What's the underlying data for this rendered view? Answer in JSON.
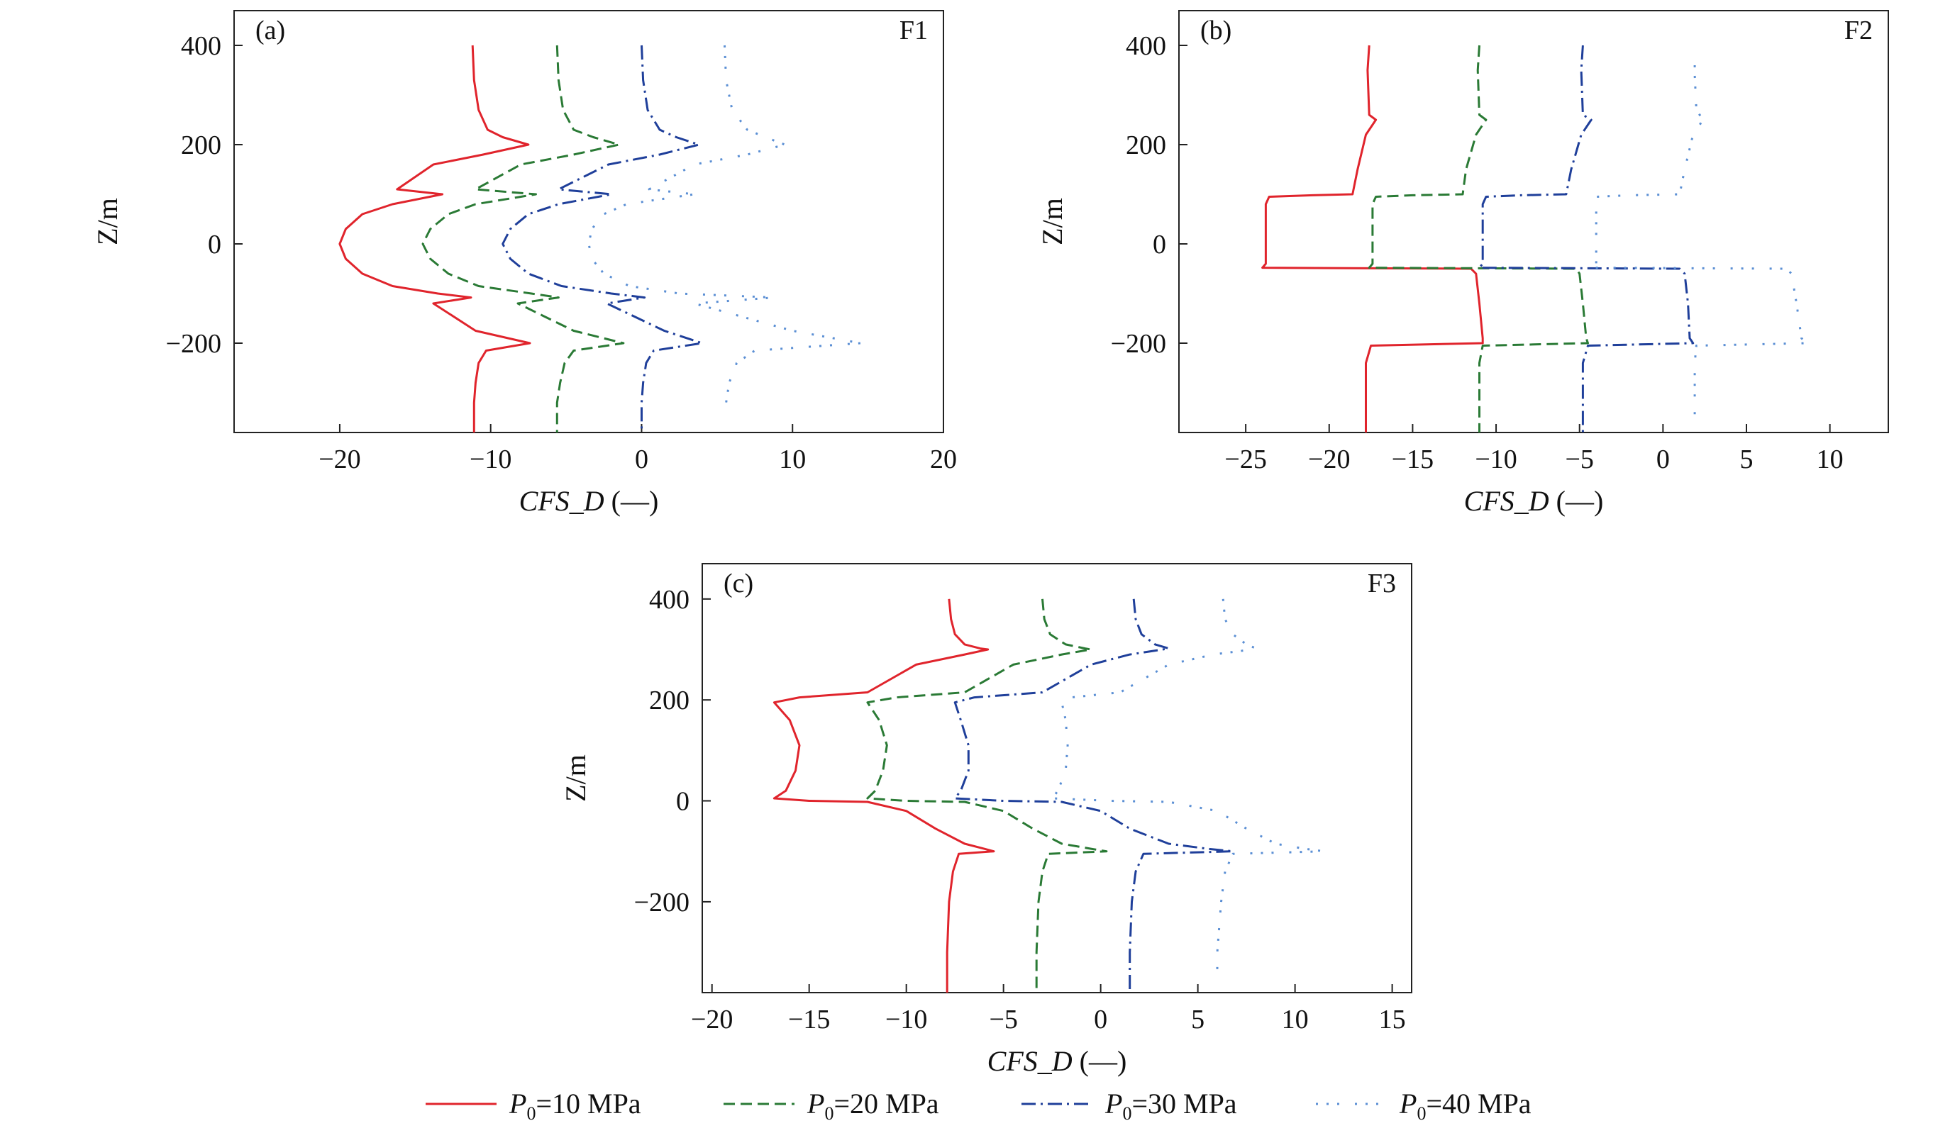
{
  "legend": [
    {
      "symbol": "P",
      "sub": "0",
      "label": "=10 MPa",
      "color": "#e0242c",
      "dash": "solid"
    },
    {
      "symbol": "P",
      "sub": "0",
      "label": "=20 MPa",
      "color": "#2a7a35",
      "dash": "dashed"
    },
    {
      "symbol": "P",
      "sub": "0",
      "label": "=30 MPa",
      "color": "#1f3f9a",
      "dash": "dashdot"
    },
    {
      "symbol": "P",
      "sub": "0",
      "label": "=40 MPa",
      "color": "#5b8fd4",
      "dash": "dashdotdot"
    }
  ],
  "chart_data": [
    {
      "type": "line",
      "panel": "(a)",
      "fault": "F1",
      "xlabel": "CFS_D",
      "xunit": "(—)",
      "ylabel": "Z/m",
      "xlim": [
        -27,
        20
      ],
      "ylim": [
        -380,
        470
      ],
      "xticks": [
        -20,
        -10,
        0,
        10,
        20
      ],
      "xtick_labels": [
        "−20",
        "−10",
        "0",
        "10",
        "20"
      ],
      "yticks": [
        400,
        200,
        0,
        -200
      ],
      "ytick_labels": [
        "400",
        "200",
        "0",
        "−200"
      ],
      "series": [
        {
          "name": "P0=10 MPa",
          "x": [
            -11.2,
            -11.1,
            -10.8,
            -10.2,
            -9.2,
            -7.5,
            -10.5,
            -13.8,
            -16.2,
            -13.2,
            -16.5,
            -18.5,
            -19.6,
            -20.0,
            -19.6,
            -18.5,
            -16.5,
            -13.5,
            -11.3,
            -13.8,
            -11.0,
            -7.4,
            -10.3,
            -10.8,
            -11.0,
            -11.1,
            -11.1,
            -11.1
          ],
          "y": [
            400,
            330,
            270,
            230,
            215,
            200,
            180,
            160,
            110,
            100,
            80,
            60,
            30,
            0,
            -30,
            -60,
            -85,
            -100,
            -108,
            -120,
            -175,
            -200,
            -215,
            -240,
            -280,
            -320,
            -360,
            -380
          ]
        },
        {
          "name": "P0=20 MPa",
          "x": [
            -5.6,
            -5.5,
            -5.2,
            -4.5,
            -3.2,
            -1.5,
            -4.5,
            -8.0,
            -11.0,
            -7.0,
            -11.0,
            -12.8,
            -14.0,
            -14.5,
            -14.0,
            -12.8,
            -10.8,
            -7.3,
            -5.5,
            -8.2,
            -4.5,
            -1.2,
            -4.5,
            -5.1,
            -5.4,
            -5.6,
            -5.6,
            -5.6
          ],
          "y": [
            400,
            330,
            270,
            230,
            215,
            200,
            180,
            160,
            110,
            100,
            80,
            60,
            30,
            0,
            -30,
            -60,
            -85,
            -100,
            -108,
            -120,
            -175,
            -200,
            -215,
            -240,
            -280,
            -320,
            -360,
            -380
          ]
        },
        {
          "name": "P0=30 MPa",
          "x": [
            0,
            0.1,
            0.4,
            1.2,
            2.3,
            3.8,
            1.2,
            -2.2,
            -5.5,
            -2.0,
            -5.5,
            -7.5,
            -8.7,
            -9.2,
            -8.7,
            -7.5,
            -5.3,
            -2.0,
            0.2,
            -2.3,
            1.5,
            4.0,
            0.8,
            0.3,
            0.1,
            0,
            0,
            0
          ],
          "y": [
            400,
            330,
            270,
            230,
            215,
            200,
            180,
            160,
            110,
            100,
            80,
            60,
            30,
            0,
            -30,
            -60,
            -85,
            -100,
            -108,
            -120,
            -175,
            -200,
            -215,
            -240,
            -280,
            -320,
            -360,
            -380
          ]
        },
        {
          "name": "P0=40 MPa",
          "x": [
            5.5,
            5.6,
            6.0,
            7.0,
            8.2,
            9.5,
            7.0,
            3.5,
            0.5,
            3.5,
            -1.0,
            -2.5,
            -3.3,
            -3.5,
            -3.3,
            -2.5,
            -0.8,
            2.5,
            8.8,
            3.5,
            10.0,
            14.5,
            7.5,
            6.3,
            5.8,
            5.6,
            5.5,
            5.5
          ],
          "y": [
            400,
            330,
            270,
            230,
            215,
            200,
            180,
            160,
            110,
            100,
            80,
            60,
            30,
            0,
            -30,
            -60,
            -85,
            -100,
            -108,
            -120,
            -175,
            -200,
            -215,
            -240,
            -280,
            -320,
            -350,
            -350
          ]
        }
      ]
    },
    {
      "type": "line",
      "panel": "(b)",
      "fault": "F2",
      "xlabel": "CFS_D",
      "xunit": "(—)",
      "ylabel": "Z/m",
      "xlim": [
        -29,
        13.5
      ],
      "ylim": [
        -380,
        470
      ],
      "xticks": [
        -25,
        -20,
        -15,
        -10,
        -5,
        0,
        5,
        10
      ],
      "xtick_labels": [
        "−25",
        "−20",
        "−15",
        "−10",
        "−5",
        "0",
        "5",
        "10"
      ],
      "yticks": [
        400,
        200,
        0,
        -200
      ],
      "ytick_labels": [
        "400",
        "200",
        "0",
        "−200"
      ],
      "series": [
        {
          "name": "P0=10 MPa",
          "x": [
            -17.6,
            -17.7,
            -17.6,
            -17.2,
            -17.4,
            -17.8,
            -18.3,
            -18.6,
            -21.0,
            -23.6,
            -23.8,
            -23.8,
            -23.8,
            -24.0,
            -11.5,
            -11.2,
            -11.0,
            -10.8,
            -10.8,
            -17.5,
            -17.8,
            -17.8,
            -17.8
          ],
          "y": [
            400,
            350,
            260,
            250,
            240,
            220,
            150,
            100,
            98,
            95,
            80,
            0,
            -40,
            -48,
            -50,
            -60,
            -120,
            -190,
            -200,
            -205,
            -240,
            -300,
            -380
          ]
        },
        {
          "name": "P0=20 MPa",
          "x": [
            -11.0,
            -11.1,
            -11.0,
            -10.6,
            -10.8,
            -11.2,
            -11.8,
            -12.0,
            -15.0,
            -17.2,
            -17.4,
            -17.4,
            -17.4,
            -17.6,
            -5.2,
            -5.0,
            -4.8,
            -4.6,
            -4.5,
            -10.8,
            -11.0,
            -11.0,
            -11.0
          ],
          "y": [
            400,
            350,
            260,
            250,
            240,
            220,
            150,
            100,
            98,
            95,
            80,
            0,
            -40,
            -48,
            -50,
            -60,
            -120,
            -190,
            -200,
            -205,
            -240,
            -300,
            -380
          ]
        },
        {
          "name": "P0=30 MPa",
          "x": [
            -4.8,
            -4.9,
            -4.8,
            -4.3,
            -4.5,
            -4.9,
            -5.5,
            -5.8,
            -8.5,
            -10.6,
            -10.8,
            -10.8,
            -10.8,
            -11.0,
            1.0,
            1.3,
            1.5,
            1.6,
            1.8,
            -4.5,
            -4.8,
            -4.8,
            -4.8
          ],
          "y": [
            400,
            350,
            260,
            250,
            240,
            220,
            150,
            100,
            98,
            95,
            80,
            0,
            -40,
            -48,
            -50,
            -60,
            -120,
            -190,
            -200,
            -205,
            -240,
            -300,
            -380
          ]
        },
        {
          "name": "P0=40 MPa",
          "x": [
            1.9,
            1.9,
            2.0,
            2.4,
            2.2,
            1.8,
            1.3,
            1.0,
            -2.0,
            -4.0,
            -4.0,
            -4.0,
            -4.0,
            -4.2,
            7.4,
            7.7,
            8.0,
            8.3,
            8.6,
            2.0,
            1.9,
            1.9,
            1.9
          ],
          "y": [
            360,
            340,
            270,
            250,
            240,
            220,
            150,
            100,
            98,
            95,
            80,
            0,
            -40,
            -48,
            -50,
            -60,
            -120,
            -190,
            -200,
            -205,
            -240,
            -300,
            -350
          ]
        }
      ]
    },
    {
      "type": "line",
      "panel": "(c)",
      "fault": "F3",
      "xlabel": "CFS_D",
      "xunit": "(—)",
      "ylabel": "Z/m",
      "xlim": [
        -20.5,
        16
      ],
      "ylim": [
        -380,
        470
      ],
      "xticks": [
        -20,
        -15,
        -10,
        -5,
        0,
        5,
        10,
        15
      ],
      "xtick_labels": [
        "−20",
        "−15",
        "−10",
        "−5",
        "0",
        "5",
        "10",
        "15"
      ],
      "yticks": [
        400,
        200,
        0,
        -200
      ],
      "ytick_labels": [
        "400",
        "200",
        "0",
        "−200"
      ],
      "series": [
        {
          "name": "P0=10 MPa",
          "x": [
            -7.8,
            -7.7,
            -7.5,
            -7.0,
            -6.2,
            -5.8,
            -7.0,
            -9.5,
            -12.0,
            -15.5,
            -16.8,
            -16.0,
            -15.5,
            -15.7,
            -16.2,
            -16.8,
            -15.0,
            -12.0,
            -10.0,
            -8.5,
            -7.0,
            -6.0,
            -5.5,
            -7.3,
            -7.6,
            -7.8,
            -7.9,
            -7.9
          ],
          "y": [
            400,
            360,
            330,
            310,
            302,
            300,
            290,
            270,
            215,
            205,
            195,
            160,
            110,
            60,
            20,
            5,
            0,
            -2,
            -20,
            -55,
            -85,
            -95,
            -100,
            -105,
            -140,
            -200,
            -300,
            -380
          ]
        },
        {
          "name": "P0=20 MPa",
          "x": [
            -3.0,
            -2.9,
            -2.6,
            -1.8,
            -0.8,
            -0.5,
            -2.0,
            -4.5,
            -7.0,
            -10.5,
            -12.0,
            -11.4,
            -11.0,
            -11.2,
            -11.6,
            -12.0,
            -10.0,
            -7.0,
            -5.0,
            -3.5,
            -2.0,
            -0.5,
            0.3,
            -2.7,
            -3.0,
            -3.2,
            -3.3,
            -3.3
          ],
          "y": [
            400,
            360,
            330,
            310,
            302,
            300,
            290,
            270,
            215,
            205,
            195,
            160,
            110,
            60,
            20,
            5,
            0,
            -2,
            -20,
            -55,
            -85,
            -95,
            -100,
            -105,
            -140,
            -200,
            -300,
            -380
          ]
        },
        {
          "name": "P0=30 MPa",
          "x": [
            1.7,
            1.8,
            2.1,
            2.8,
            3.5,
            3.2,
            1.5,
            -0.5,
            -3.0,
            -6.5,
            -7.5,
            -7.2,
            -6.8,
            -6.8,
            -7.2,
            -7.5,
            -5.0,
            -2.0,
            0,
            1.5,
            3.5,
            5.5,
            6.8,
            2.2,
            1.8,
            1.6,
            1.5,
            1.5
          ],
          "y": [
            400,
            360,
            330,
            310,
            302,
            300,
            290,
            270,
            215,
            205,
            195,
            160,
            110,
            60,
            20,
            5,
            0,
            -2,
            -20,
            -55,
            -85,
            -95,
            -100,
            -105,
            -140,
            -200,
            -300,
            -380
          ]
        },
        {
          "name": "P0=40 MPa",
          "x": [
            6.3,
            6.4,
            6.8,
            7.5,
            8.0,
            7.8,
            5.8,
            3.5,
            1.0,
            -1.5,
            -2.0,
            -1.8,
            -1.7,
            -1.8,
            -2.2,
            -2.5,
            0.5,
            3.5,
            6.0,
            7.5,
            9.0,
            10.5,
            11.5,
            6.8,
            6.4,
            6.2,
            6.0,
            6.0
          ],
          "y": [
            400,
            360,
            330,
            310,
            302,
            300,
            290,
            270,
            215,
            205,
            195,
            160,
            110,
            60,
            20,
            5,
            0,
            -2,
            -20,
            -55,
            -85,
            -95,
            -100,
            -105,
            -140,
            -200,
            -300,
            -340
          ]
        }
      ]
    }
  ]
}
